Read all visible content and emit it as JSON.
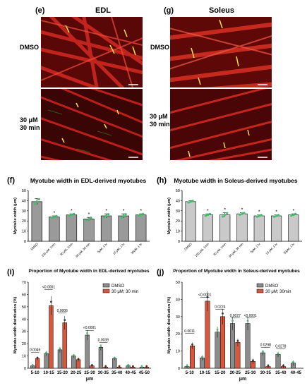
{
  "panels": {
    "e": {
      "label": "(e)",
      "title": "EDL",
      "rows": [
        "DMSO",
        "30 μM 30 min"
      ]
    },
    "g": {
      "label": "(g)",
      "title": "Soleus",
      "rows": [
        "DMSO",
        "30 μM 30 min"
      ]
    },
    "f": {
      "label": "(f)"
    },
    "h": {
      "label": "(h)"
    },
    "i": {
      "label": "(i)"
    },
    "j": {
      "label": "(j)"
    }
  },
  "colors": {
    "dmso": "#8c8c8c",
    "treat": "#d9573d",
    "point": "#3fbf6a",
    "point_blue": "#5b8ad9",
    "bar_f": "#9a9a9a",
    "bar_h": "#c9c9c9"
  },
  "chart_data": [
    {
      "id": "f",
      "type": "bar",
      "title": "Myotube width in EDL-derived myotubes",
      "ylabel": "Myotube width (μm)",
      "categories": [
        "DMSO",
        "100 μM, 1min",
        "30 μM, 1min",
        "30 μM, 30 min",
        "5μM, 1 hr",
        "10 μM, 1 hr",
        "30μM, 1 hr"
      ],
      "values": [
        39,
        24,
        26,
        22,
        25,
        25,
        26
      ],
      "errors": [
        3,
        1,
        1,
        1.5,
        2,
        2,
        1
      ],
      "significance": [
        "",
        "*",
        "*",
        "*",
        "*",
        "*",
        "*"
      ],
      "ylim": [
        0,
        50
      ],
      "yticks": [
        "0",
        "10",
        "20",
        "30",
        "40",
        "50"
      ]
    },
    {
      "id": "h",
      "type": "bar",
      "title": "Myotube width in Soleus-derived myotubes",
      "ylabel": "Myotube width (μm)",
      "categories": [
        "DMSO",
        "100 μM, 1min",
        "30 μM, 1min",
        "30 μM, 30 min",
        "5μM, 1 hr",
        "10 μM, 1 hr",
        "30μM, 1 hr"
      ],
      "values": [
        39,
        26,
        26,
        27,
        25,
        25,
        26
      ],
      "errors": [
        1,
        1,
        2,
        1,
        1,
        1,
        1
      ],
      "significance": [
        "",
        "*",
        "*",
        "*",
        "*",
        "*",
        "*"
      ],
      "ylim": [
        0,
        50
      ],
      "yticks": [
        "0",
        "10",
        "20",
        "30",
        "40",
        "50"
      ]
    },
    {
      "id": "i",
      "type": "bar",
      "title": "Proportion of Myotube width in EDL-derived myotubes",
      "ylabel": "Myotube width distribution (%)",
      "xlabel": "μm",
      "categories": [
        "5-10",
        "10-15",
        "15-20",
        "20-25",
        "25-30",
        "30-35",
        "35-40",
        "40-45",
        "45-50"
      ],
      "series": [
        {
          "name": "DMSO",
          "values": [
            2,
            12,
            15,
            10,
            27,
            17,
            8,
            2,
            1
          ]
        },
        {
          "name": "30 μM; 30 min",
          "values": [
            8,
            51,
            37,
            7,
            2,
            1,
            1,
            1,
            1
          ]
        }
      ],
      "pvalues": [
        {
          "text": "0.0045",
          "index": 0,
          "y": 14
        },
        {
          "text": "<0.0001",
          "index": 1,
          "y": 65
        },
        {
          "text": "0.0006",
          "index": 2,
          "y": 46
        },
        {
          "text": "<0.0001",
          "index": 4,
          "y": 32
        },
        {
          "text": "0.0039",
          "index": 5,
          "y": 22
        }
      ],
      "ylim": [
        0,
        70
      ],
      "yticks": [
        "0",
        "10",
        "20",
        "30",
        "40",
        "50",
        "60",
        "70"
      ],
      "legend": "top-right"
    },
    {
      "id": "j",
      "type": "bar",
      "title": "Proportion of Myotube width in Soleus-derived myotubes",
      "ylabel": "Myotube width distribution (%)",
      "xlabel": "μm",
      "categories": [
        "5-10",
        "10-15",
        "15-20",
        "20-25",
        "25-30",
        "30-35",
        "35-40",
        "40-45"
      ],
      "series": [
        {
          "name": "DMSO",
          "values": [
            1,
            6,
            21,
            26,
            26,
            9,
            8,
            3
          ]
        },
        {
          "name": "30 μM; 30min",
          "values": [
            13,
            39,
            30,
            15,
            4,
            1,
            1,
            0
          ]
        }
      ],
      "pvalues": [
        {
          "text": "0.0011",
          "index": 0,
          "y": 21
        },
        {
          "text": "<0.0001",
          "index": 1,
          "y": 42
        },
        {
          "text": "0.0224",
          "index": 2,
          "y": 35
        },
        {
          "text": "0.0027",
          "index": 3,
          "y": 30
        },
        {
          "text": "<0.0001",
          "index": 4,
          "y": 30
        },
        {
          "text": "0.0298",
          "index": 5,
          "y": 13
        },
        {
          "text": "0.0278",
          "index": 6,
          "y": 12
        }
      ],
      "ylim": [
        0,
        50
      ],
      "yticks": [
        "0",
        "10",
        "20",
        "30",
        "40",
        "50"
      ],
      "legend": "top-right"
    }
  ]
}
